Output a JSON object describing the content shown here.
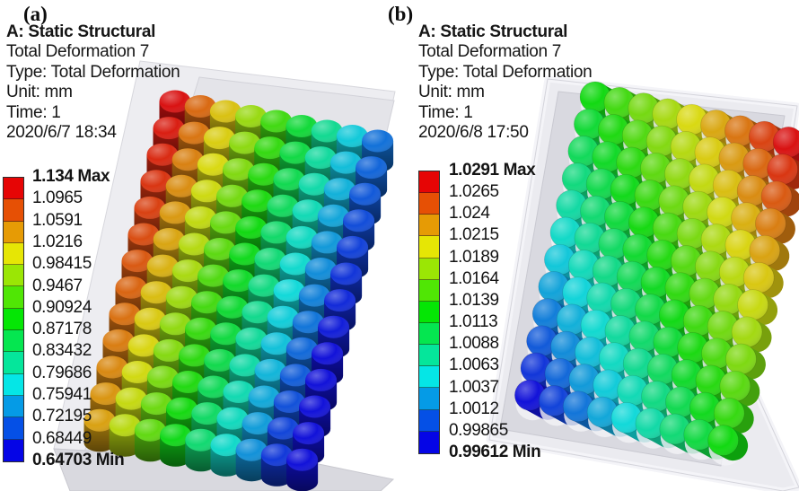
{
  "figure": {
    "panels": [
      {
        "panel_label": "(a)",
        "header": {
          "title": "A: Static Structural",
          "result_name": "Total Deformation 7",
          "type_line": "Type: Total Deformation",
          "unit_line": "Unit: mm",
          "time_line": "Time: 1",
          "datetime": "2020/6/7 18:34"
        },
        "legend": {
          "values": [
            "1.134 Max",
            "1.0965",
            "1.0591",
            "1.0216",
            "0.98415",
            "0.9467",
            "0.90924",
            "0.87178",
            "0.83432",
            "0.79686",
            "0.75941",
            "0.72195",
            "0.68449",
            "0.64703 Min"
          ],
          "band_colors": [
            "#e60505",
            "#e65005",
            "#e69b05",
            "#e6e605",
            "#9be605",
            "#50e605",
            "#05e605",
            "#05e650",
            "#05e69b",
            "#05e6e6",
            "#059be6",
            "#0550e6",
            "#0505e6"
          ]
        }
      },
      {
        "panel_label": "(b)",
        "header": {
          "title": "A: Static Structural",
          "result_name": "Total Deformation 7",
          "type_line": "Type: Total Deformation",
          "unit_line": "Unit: mm",
          "time_line": "Time: 1",
          "datetime": "2020/6/8 17:50"
        },
        "legend": {
          "values": [
            "1.0291 Max",
            "1.0265",
            "1.024",
            "1.0215",
            "1.0189",
            "1.0164",
            "1.0139",
            "1.0113",
            "1.0088",
            "1.0063",
            "1.0037",
            "1.0012",
            "0.99865",
            "0.99612 Min"
          ],
          "band_colors": [
            "#e60505",
            "#e65005",
            "#e69b05",
            "#e6e605",
            "#9be605",
            "#50e605",
            "#05e605",
            "#05e650",
            "#05e69b",
            "#05e6e6",
            "#059be6",
            "#0550e6",
            "#0505e6"
          ]
        }
      }
    ]
  },
  "chart_data": [
    {
      "type": "heatmap",
      "panel": "(a)",
      "title": "A: Static Structural",
      "series_name": "Total Deformation 7",
      "result_type": "Total Deformation",
      "unit": "mm",
      "time": "1",
      "date": "2020/6/7 18:34",
      "max": 1.134,
      "min": 0.64703,
      "legend_values": [
        1.134,
        1.0965,
        1.0591,
        1.0216,
        0.98415,
        0.9467,
        0.90924,
        0.87178,
        0.83432,
        0.79686,
        0.75941,
        0.72195,
        0.68449,
        0.64703
      ],
      "colormap": "rainbow, 13 bands, red = max to blue = min",
      "grid": {
        "rows": 13,
        "cols": 9
      },
      "gradient": "deformation decreases left-to-right across columns; maximum (red) at top-left column, minimum (deep blue) at bottom-right"
    },
    {
      "type": "heatmap",
      "panel": "(b)",
      "title": "A: Static Structural",
      "series_name": "Total Deformation 7",
      "result_type": "Total Deformation",
      "unit": "mm",
      "time": "1",
      "date": "2020/6/8 17:50",
      "max": 1.0291,
      "min": 0.99612,
      "legend_values": [
        1.0291,
        1.0265,
        1.024,
        1.0215,
        1.0189,
        1.0164,
        1.0139,
        1.0113,
        1.0088,
        1.0063,
        1.0037,
        1.0012,
        0.99865,
        0.99612
      ],
      "colormap": "rainbow, 13 bands, red = max to blue = min",
      "grid": {
        "rows": 12,
        "cols": 9
      },
      "gradient": "deformation decreases diagonally from top-right (red, max) to bottom-left (deep blue, min)"
    }
  ]
}
